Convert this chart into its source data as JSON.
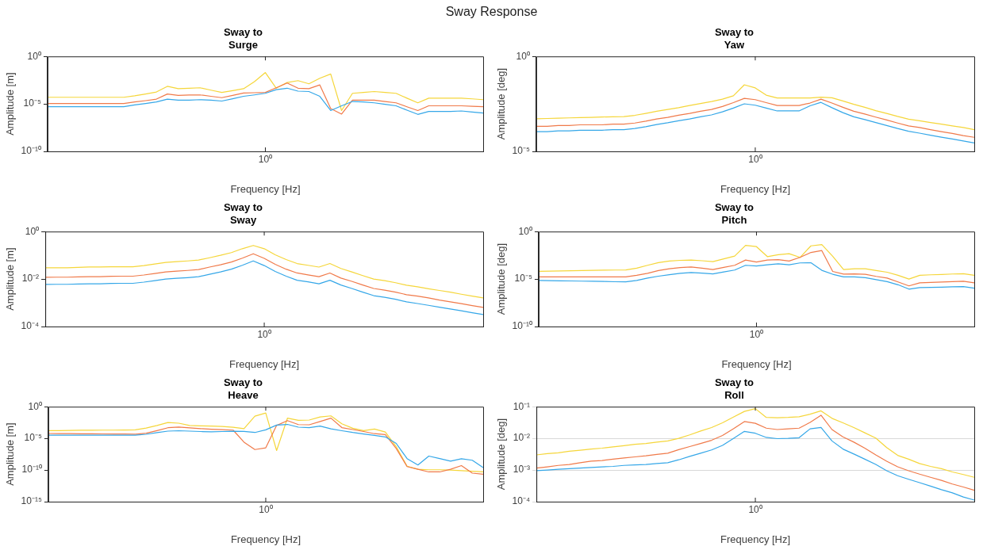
{
  "chart_data": [
    {
      "type": "line",
      "title": "Sway to\nSurge",
      "xlabel": "Frequency [Hz]",
      "ylabel": "Amplitude [m]",
      "annotations": [
        "Sway Response",
        {
          "text": "10⁰"
        }
      ],
      "categories": [
        null,
        null,
        null,
        null,
        null,
        null,
        null,
        null,
        null,
        null,
        null,
        null,
        null,
        null,
        null,
        null,
        null,
        null,
        null,
        null,
        null,
        null,
        null,
        null,
        null,
        null,
        null,
        null,
        null,
        null,
        null,
        null,
        null,
        null,
        null,
        null,
        null,
        null,
        null,
        null,
        null
      ],
      "ylim": [
        1e-10,
        1
      ],
      "yticks": [
        {
          "value": 1e-10,
          "label": "10⁻¹⁰"
        },
        {
          "value": 1e-05,
          "label": "10⁻⁵"
        },
        {
          "value": 1,
          "label": "10⁰"
        }
      ],
      "log": "y",
      "series": [
        {
          "color": "#35a7e8",
          "values": [
            5e-06,
            5e-06,
            5e-06,
            5e-06,
            5e-06,
            5e-06,
            5e-06,
            5e-06,
            7.9e-06,
            1.1e-05,
            1.6e-05,
            3.2e-05,
            2.5e-05,
            2.5e-05,
            2.8e-05,
            2.5e-05,
            2e-05,
            3.5e-05,
            6.3e-05,
            8.9e-05,
            0.00013,
            0.00032,
            0.00045,
            0.00022,
            0.0002,
            6.3e-05,
            2e-06,
            6.3e-06,
            1.8e-05,
            1.6e-05,
            1.3e-05,
            8.9e-06,
            6.3e-06,
            2.2e-06,
            7.9e-07,
            1.6e-06,
            1.6e-06,
            1.6e-06,
            1.8e-06,
            1.4e-06,
            1.1e-06
          ]
        },
        {
          "color": "#f07a4a",
          "values": [
            1.1e-05,
            1.1e-05,
            1.1e-05,
            1.1e-05,
            1.1e-05,
            1.1e-05,
            1.1e-05,
            1.1e-05,
            1.6e-05,
            2.2e-05,
            3.2e-05,
            0.00011,
            7.9e-05,
            8.5e-05,
            8.9e-05,
            6.3e-05,
            4.5e-05,
            7.9e-05,
            0.00014,
            0.00015,
            0.00016,
            0.0005,
            0.0016,
            0.00045,
            0.0004,
            0.001,
            3.2e-06,
            8.5e-07,
            2.5e-05,
            2.5e-05,
            2.5e-05,
            1.8e-05,
            1.3e-05,
            5e-06,
            2e-06,
            6.3e-06,
            6.3e-06,
            6.3e-06,
            6.3e-06,
            5.6e-06,
            5e-06
          ]
        },
        {
          "color": "#f5d63a",
          "values": [
            5e-05,
            5e-05,
            5e-05,
            5e-05,
            5e-05,
            5e-05,
            5e-05,
            5e-05,
            7.1e-05,
            0.00011,
            0.00018,
            0.00071,
            0.0004,
            0.00045,
            0.0005,
            0.00028,
            0.00016,
            0.00025,
            0.0004,
            0.0022,
            0.02,
            0.00045,
            0.0018,
            0.0028,
            0.0013,
            0.005,
            0.014,
            2e-06,
            0.00013,
            0.00016,
            0.0002,
            0.00016,
            0.00013,
            4e-05,
            1.3e-05,
            4e-05,
            4e-05,
            4e-05,
            4e-05,
            3.4e-05,
            2.8e-05
          ]
        }
      ]
    },
    {
      "type": "line",
      "title": "Sway to\nYaw",
      "xlabel": "Frequency [Hz]",
      "ylabel": "Amplitude [deg]",
      "annotations": [
        {
          "text": "10⁰"
        }
      ],
      "categories": [
        null,
        null,
        null,
        null,
        null,
        null,
        null,
        null,
        null,
        null,
        null,
        null,
        null,
        null,
        null,
        null,
        null,
        null,
        null,
        null,
        null,
        null,
        null,
        null,
        null,
        null,
        null,
        null,
        null,
        null,
        null,
        null,
        null,
        null,
        null,
        null,
        null,
        null,
        null,
        null,
        null
      ],
      "ylim": [
        1e-05,
        1
      ],
      "yticks": [
        {
          "value": 1e-05,
          "label": "10⁻⁵"
        },
        {
          "value": 1,
          "label": "10⁰"
        }
      ],
      "log": "y",
      "series": [
        {
          "color": "#35a7e8",
          "values": [
            0.00011,
            0.00011,
            0.00012,
            0.00012,
            0.00013,
            0.00013,
            0.00013,
            0.00014,
            0.00014,
            0.00016,
            0.0002,
            0.00026,
            0.00032,
            0.00041,
            0.00051,
            0.00066,
            0.00083,
            0.0012,
            0.0019,
            0.0032,
            0.0027,
            0.0019,
            0.00135,
            0.00135,
            0.00135,
            0.0025,
            0.0038,
            0.002,
            0.0011,
            0.00066,
            0.00047,
            0.00033,
            0.00023,
            0.00016,
            0.000115,
            9.1e-05,
            7.1e-05,
            5.6e-05,
            4.5e-05,
            3.5e-05,
            2.8e-05
          ]
        },
        {
          "color": "#f07a4a",
          "values": [
            0.00021,
            0.00021,
            0.00023,
            0.00023,
            0.00025,
            0.00025,
            0.00025,
            0.00027,
            0.00027,
            0.00031,
            0.00039,
            0.00051,
            0.00062,
            0.0008,
            0.001,
            0.0013,
            0.0016,
            0.0023,
            0.0037,
            0.0062,
            0.0053,
            0.0037,
            0.0026,
            0.0026,
            0.0026,
            0.0035,
            0.0056,
            0.0035,
            0.0021,
            0.0013,
            0.00092,
            0.00064,
            0.00045,
            0.00031,
            0.00022,
            0.00018,
            0.00014,
            0.00011,
            8.8e-05,
            6.8e-05,
            5.5e-05
          ]
        },
        {
          "color": "#f5d63a",
          "values": [
            0.00052,
            0.00054,
            0.00056,
            0.00058,
            0.0006,
            0.00062,
            0.00065,
            0.00066,
            0.00068,
            0.00079,
            0.001,
            0.0013,
            0.0016,
            0.002,
            0.0026,
            0.0033,
            0.0042,
            0.0056,
            0.0085,
            0.032,
            0.022,
            0.0091,
            0.0065,
            0.0065,
            0.0065,
            0.0065,
            0.0071,
            0.0066,
            0.0045,
            0.003,
            0.0021,
            0.0014,
            0.001,
            0.00069,
            0.0005,
            0.00041,
            0.00033,
            0.00027,
            0.00022,
            0.00018,
            0.00014
          ]
        }
      ]
    },
    {
      "type": "line",
      "title": "Sway to\nSway",
      "xlabel": "Frequency [Hz]",
      "ylabel": "Amplitude [m]",
      "annotations": [
        {
          "text": "10⁰"
        }
      ],
      "categories": [
        null,
        null,
        null,
        null,
        null,
        null,
        null,
        null,
        null,
        null,
        null,
        null,
        null,
        null,
        null,
        null,
        null,
        null,
        null,
        null,
        null,
        null,
        null,
        null,
        null,
        null,
        null,
        null,
        null,
        null,
        null,
        null,
        null,
        null,
        null,
        null,
        null,
        null,
        null,
        null,
        null
      ],
      "ylim": [
        0.0001,
        1
      ],
      "yticks": [
        {
          "value": 0.0001,
          "label": "10⁻⁴"
        },
        {
          "value": 0.01,
          "label": "10⁻²"
        },
        {
          "value": 1,
          "label": "10⁰"
        }
      ],
      "log": "y",
      "series": [
        {
          "color": "#35a7e8",
          "values": [
            0.0059,
            0.006,
            0.006,
            0.0062,
            0.0063,
            0.0063,
            0.0065,
            0.0066,
            0.0066,
            0.0074,
            0.0085,
            0.01,
            0.0107,
            0.0115,
            0.0126,
            0.0158,
            0.02,
            0.026,
            0.038,
            0.058,
            0.037,
            0.021,
            0.0132,
            0.0089,
            0.0076,
            0.0063,
            0.0089,
            0.0056,
            0.004,
            0.0028,
            0.002,
            0.0017,
            0.0014,
            0.0011,
            0.00093,
            0.00078,
            0.00065,
            0.00055,
            0.00046,
            0.00038,
            0.00032
          ]
        },
        {
          "color": "#f07a4a",
          "values": [
            0.0118,
            0.012,
            0.012,
            0.0124,
            0.0126,
            0.0126,
            0.013,
            0.0132,
            0.0132,
            0.0148,
            0.017,
            0.02,
            0.0214,
            0.023,
            0.025,
            0.032,
            0.04,
            0.052,
            0.076,
            0.116,
            0.074,
            0.042,
            0.026,
            0.018,
            0.015,
            0.0126,
            0.018,
            0.011,
            0.008,
            0.0056,
            0.004,
            0.0034,
            0.0028,
            0.0022,
            0.0019,
            0.0016,
            0.0013,
            0.0011,
            0.00092,
            0.00076,
            0.00064
          ]
        },
        {
          "color": "#f5d63a",
          "values": [
            0.03,
            0.03,
            0.03,
            0.031,
            0.032,
            0.032,
            0.033,
            0.033,
            0.033,
            0.037,
            0.043,
            0.05,
            0.054,
            0.058,
            0.063,
            0.079,
            0.1,
            0.13,
            0.19,
            0.26,
            0.19,
            0.105,
            0.066,
            0.045,
            0.038,
            0.032,
            0.045,
            0.028,
            0.02,
            0.014,
            0.01,
            0.0085,
            0.007,
            0.0055,
            0.0047,
            0.0039,
            0.0033,
            0.0028,
            0.0023,
            0.0019,
            0.0016
          ]
        }
      ]
    },
    {
      "type": "line",
      "title": "Sway to\nPitch",
      "xlabel": "Frequency [Hz]",
      "ylabel": "Amplitude [deg]",
      "annotations": [
        {
          "text": "10⁰"
        }
      ],
      "categories": [
        null,
        null,
        null,
        null,
        null,
        null,
        null,
        null,
        null,
        null,
        null,
        null,
        null,
        null,
        null,
        null,
        null,
        null,
        null,
        null,
        null,
        null,
        null,
        null,
        null,
        null,
        null,
        null,
        null,
        null,
        null,
        null,
        null,
        null,
        null,
        null,
        null,
        null,
        null,
        null,
        null
      ],
      "ylim": [
        1e-10,
        1
      ],
      "yticks": [
        {
          "value": 1e-10,
          "label": "10⁻¹⁰"
        },
        {
          "value": 1e-05,
          "label": "10⁻⁵"
        },
        {
          "value": 1,
          "label": "10⁰"
        }
      ],
      "log": "y",
      "series": [
        {
          "color": "#35a7e8",
          "values": [
            7.1e-06,
            6.8e-06,
            6.5e-06,
            6.3e-06,
            6e-06,
            5.8e-06,
            5.5e-06,
            5.2e-06,
            5e-06,
            7.1e-06,
            1.26e-05,
            2e-05,
            2.9e-05,
            4e-05,
            4.9e-05,
            4.2e-05,
            3.5e-05,
            5.6e-05,
            8.9e-05,
            0.00028,
            0.00024,
            0.00032,
            0.0004,
            0.00032,
            0.0005,
            0.00052,
            8.3e-05,
            3.2e-05,
            1.7e-05,
            1.7e-05,
            1.4e-05,
            8.7e-06,
            5.4e-06,
            2.5e-06,
            8.7e-07,
            1.26e-06,
            1.3e-06,
            1.4e-06,
            1.5e-06,
            1.6e-06,
            1.1e-06
          ]
        },
        {
          "color": "#f07a4a",
          "values": [
            1.7e-05,
            1.7e-05,
            1.7e-05,
            1.7e-05,
            1.7e-05,
            1.7e-05,
            1.7e-05,
            1.7e-05,
            1.7e-05,
            2.5e-05,
            4e-05,
            7.9e-05,
            0.00012,
            0.00016,
            0.00019,
            0.00014,
            0.0001,
            0.00017,
            0.00028,
            0.001,
            0.00063,
            0.001,
            0.0011,
            0.00079,
            0.0019,
            0.0063,
            0.01,
            6.3e-05,
            3.3e-05,
            3.5e-05,
            3.2e-05,
            1.9e-05,
            1.26e-05,
            5e-06,
            1.9e-06,
            4e-06,
            4.4e-06,
            4.8e-06,
            5.4e-06,
            5.9e-06,
            4e-06
          ]
        },
        {
          "color": "#f5d63a",
          "values": [
            6.6e-05,
            6.9e-05,
            7.2e-05,
            7.4e-05,
            7.8e-05,
            8.1e-05,
            8.5e-05,
            8.9e-05,
            9.1e-05,
            0.00014,
            0.00028,
            0.00054,
            0.00078,
            0.00093,
            0.001,
            0.00085,
            0.00069,
            0.00135,
            0.0026,
            0.035,
            0.026,
            0.0023,
            0.0037,
            0.0047,
            0.0019,
            0.031,
            0.042,
            0.0025,
            0.0001,
            0.00012,
            0.00012,
            7.9e-05,
            5.2e-05,
            2.5e-05,
            1e-05,
            2.5e-05,
            2.8e-05,
            3e-05,
            3.4e-05,
            3.7e-05,
            2.5e-05
          ]
        }
      ]
    },
    {
      "type": "line",
      "title": "Sway to\nHeave",
      "xlabel": "Frequency [Hz]",
      "ylabel": "Amplitude [m]",
      "annotations": [
        {
          "text": "10⁰"
        }
      ],
      "categories": [
        null,
        null,
        null,
        null,
        null,
        null,
        null,
        null,
        null,
        null,
        null,
        null,
        null,
        null,
        null,
        null,
        null,
        null,
        null,
        null,
        null,
        null,
        null,
        null,
        null,
        null,
        null,
        null,
        null,
        null,
        null,
        null,
        null,
        null,
        null,
        null,
        null,
        null,
        null,
        null,
        null
      ],
      "ylim": [
        1e-15,
        1
      ],
      "yticks": [
        {
          "value": 1e-15,
          "label": "10⁻¹⁵"
        },
        {
          "value": 1e-10,
          "label": "10⁻¹⁰"
        },
        {
          "value": 1e-05,
          "label": "10⁻⁵"
        },
        {
          "value": 1,
          "label": "10⁰"
        }
      ],
      "log": "y",
      "series": [
        {
          "color": "#35a7e8",
          "values": [
            3.2e-05,
            3.2e-05,
            3.2e-05,
            3.2e-05,
            3.2e-05,
            3.2e-05,
            3.2e-05,
            3.2e-05,
            3.2e-05,
            4.4e-05,
            7.9e-05,
            0.00014,
            0.00016,
            0.00014,
            0.00012,
            0.00011,
            0.00012,
            0.000135,
            0.000126,
            8.5e-05,
            0.00022,
            0.00126,
            0.0016,
            0.00059,
            0.0005,
            0.00089,
            0.00032,
            0.00016,
            8.5e-05,
            5e-05,
            2.9e-05,
            1.7e-05,
            1.6e-06,
            6.3e-09,
            6.3e-10,
            1.6e-08,
            6.3e-09,
            2.5e-09,
            5.9e-09,
            3.5e-09,
            2.5e-10
          ]
        },
        {
          "color": "#f07a4a",
          "values": [
            5.9e-05,
            5.8e-05,
            5.5e-05,
            5.4e-05,
            5.2e-05,
            5.1e-05,
            4.9e-05,
            4.8e-05,
            4.6e-05,
            6.6e-05,
            0.00017,
            0.00048,
            0.0006,
            0.00046,
            0.00035,
            0.00028,
            0.00024,
            0.0002,
            2.5e-06,
            1.7e-07,
            3.2e-07,
            0.0011,
            0.0063,
            0.0015,
            0.0014,
            0.0045,
            0.0155,
            0.0005,
            0.00025,
            0.00012,
            5.5e-05,
            3.9e-05,
            2.5e-07,
            3.5e-10,
            1.3e-10,
            5e-11,
            5e-11,
            1.3e-10,
            5e-10,
            3.2e-11,
            2.2e-11
          ]
        },
        {
          "color": "#f5d63a",
          "values": [
            0.00017,
            0.00017,
            0.00018,
            0.00019,
            0.00019,
            0.0002,
            0.0002,
            0.00021,
            0.00022,
            0.00043,
            0.0011,
            0.0032,
            0.0025,
            0.0011,
            0.00095,
            0.00085,
            0.00076,
            0.00058,
            0.00035,
            0.032,
            0.1,
            1.2e-07,
            0.016,
            0.0071,
            0.0079,
            0.024,
            0.036,
            0.002,
            0.0004,
            0.00017,
            0.00029,
            0.0001,
            5e-07,
            4e-10,
            1.3e-10,
            1.1e-10,
            1.1e-10,
            1e-10,
            7.9e-11,
            6.3e-11,
            5e-11
          ]
        }
      ]
    },
    {
      "type": "line",
      "title": "Sway to\nRoll",
      "xlabel": "Frequency [Hz]",
      "ylabel": "Amplitude [deg]",
      "annotations": [
        {
          "text": "10⁰"
        }
      ],
      "categories": [
        null,
        null,
        null,
        null,
        null,
        null,
        null,
        null,
        null,
        null,
        null,
        null,
        null,
        null,
        null,
        null,
        null,
        null,
        null,
        null,
        null,
        null,
        null,
        null,
        null,
        null,
        null,
        null,
        null,
        null,
        null,
        null,
        null,
        null,
        null,
        null,
        null,
        null,
        null,
        null,
        null
      ],
      "ylim": [
        0.0001,
        0.1
      ],
      "yticks": [
        {
          "value": 0.0001,
          "label": "10⁻⁴"
        },
        {
          "value": 0.001,
          "label": "10⁻³"
        },
        {
          "value": 0.01,
          "label": "10⁻²"
        },
        {
          "value": 0.1,
          "label": "10⁻¹"
        }
      ],
      "log": "y",
      "grid": "y",
      "series": [
        {
          "color": "#35a7e8",
          "values": [
            0.00095,
            0.001,
            0.00105,
            0.0011,
            0.00115,
            0.0012,
            0.00126,
            0.0013,
            0.0014,
            0.00145,
            0.0015,
            0.0016,
            0.0017,
            0.0021,
            0.0027,
            0.0034,
            0.0043,
            0.006,
            0.01,
            0.0166,
            0.0145,
            0.0107,
            0.0098,
            0.01,
            0.0105,
            0.02,
            0.022,
            0.0083,
            0.0046,
            0.0032,
            0.0022,
            0.0015,
            0.00095,
            0.00066,
            0.00051,
            0.0004,
            0.00031,
            0.00024,
            0.00019,
            0.00014,
            0.000112
          ]
        },
        {
          "color": "#f07a4a",
          "values": [
            0.00115,
            0.00126,
            0.0014,
            0.0015,
            0.0017,
            0.0019,
            0.002,
            0.0022,
            0.0024,
            0.0026,
            0.0028,
            0.0031,
            0.0034,
            0.0044,
            0.0055,
            0.0069,
            0.0087,
            0.0123,
            0.02,
            0.034,
            0.03,
            0.021,
            0.019,
            0.02,
            0.021,
            0.032,
            0.054,
            0.019,
            0.0112,
            0.0076,
            0.0049,
            0.003,
            0.0019,
            0.00126,
            0.00095,
            0.00074,
            0.00059,
            0.00047,
            0.00036,
            0.00029,
            0.00023
          ]
        },
        {
          "color": "#f5d63a",
          "values": [
            0.003,
            0.0033,
            0.0035,
            0.0039,
            0.0042,
            0.0046,
            0.0049,
            0.0054,
            0.0059,
            0.0065,
            0.0069,
            0.0076,
            0.0083,
            0.01,
            0.0129,
            0.017,
            0.022,
            0.031,
            0.047,
            0.071,
            0.087,
            0.046,
            0.045,
            0.046,
            0.048,
            0.058,
            0.074,
            0.043,
            0.031,
            0.022,
            0.015,
            0.0102,
            0.0051,
            0.0029,
            0.0022,
            0.0016,
            0.0013,
            0.0011,
            0.00087,
            0.00072,
            0.00059
          ]
        }
      ]
    }
  ]
}
